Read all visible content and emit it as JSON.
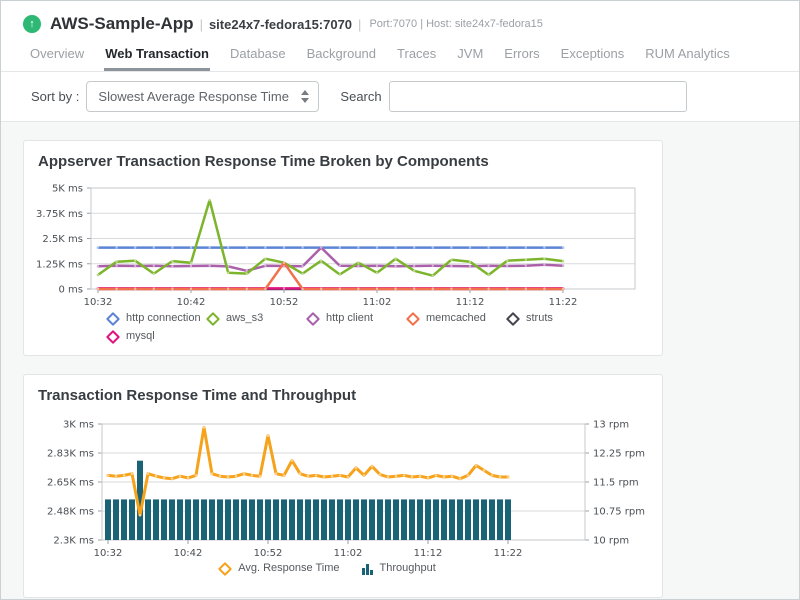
{
  "header": {
    "status_glyph": "↑",
    "app_name": "AWS-Sample-App",
    "sep": "|",
    "instance": "site24x7-fedora15:7070",
    "meta": "Port:7070 | Host: site24x7-fedora15"
  },
  "tabs": [
    {
      "label": "Overview",
      "active": false
    },
    {
      "label": "Web Transaction",
      "active": true
    },
    {
      "label": "Database",
      "active": false
    },
    {
      "label": "Background",
      "active": false
    },
    {
      "label": "Traces",
      "active": false
    },
    {
      "label": "JVM",
      "active": false
    },
    {
      "label": "Errors",
      "active": false
    },
    {
      "label": "Exceptions",
      "active": false
    },
    {
      "label": "RUM Analytics",
      "active": false
    }
  ],
  "toolbar": {
    "sort_label": "Sort by :",
    "sort_value": "Slowest Average Response Time",
    "search_label": "Search",
    "search_value": ""
  },
  "colors": {
    "status_up_green": "#2db873",
    "active_tab_underline": "#8e949b",
    "card_border": "#e2e4e5",
    "content_background": "#f6f7f7"
  },
  "chart_data": [
    {
      "type": "line",
      "title": "Appserver Transaction Response Time Broken by Components",
      "y_unit": "ms",
      "ylim": [
        0,
        5000
      ],
      "y_tick_labels": [
        "5K ms",
        "3.75K ms",
        "2.5K ms",
        "1.25K ms",
        "0 ms"
      ],
      "x_ticks": [
        "10:32",
        "10:42",
        "10:52",
        "11:02",
        "11:12",
        "11:22"
      ],
      "grid": true,
      "legend_position": "bottom",
      "x": [
        "10:32",
        "10:34",
        "10:36",
        "10:38",
        "10:40",
        "10:42",
        "10:44",
        "10:46",
        "10:48",
        "10:50",
        "10:52",
        "10:54",
        "10:56",
        "10:58",
        "11:00",
        "11:02",
        "11:04",
        "11:06",
        "11:08",
        "11:10",
        "11:12",
        "11:14",
        "11:16",
        "11:18",
        "11:20",
        "11:22"
      ],
      "series": [
        {
          "name": "http connection",
          "color": "#5b84d6",
          "values": [
            2050,
            2050,
            2050,
            2050,
            2050,
            2050,
            2050,
            2050,
            2050,
            2050,
            2050,
            2050,
            2050,
            2050,
            2050,
            2050,
            2050,
            2050,
            2050,
            2050,
            2050,
            2050,
            2050,
            2050,
            2050,
            2050
          ]
        },
        {
          "name": "aws_s3",
          "color": "#7cb52b",
          "values": [
            700,
            1350,
            1400,
            760,
            1380,
            1300,
            4400,
            800,
            760,
            1500,
            1300,
            760,
            1400,
            720,
            1300,
            800,
            1500,
            900,
            660,
            1450,
            1350,
            700,
            1400,
            1450,
            1500,
            1380
          ]
        },
        {
          "name": "http client",
          "color": "#aa60ab",
          "values": [
            1130,
            1150,
            1140,
            1150,
            1130,
            1140,
            1150,
            1120,
            900,
            1150,
            1140,
            1130,
            2050,
            1150,
            1140,
            1150,
            1130,
            1140,
            1150,
            1140,
            1130,
            1150,
            1140,
            1150,
            1200,
            1150
          ]
        },
        {
          "name": "memcached",
          "color": "#f2714b",
          "values": [
            0,
            0,
            0,
            0,
            0,
            0,
            0,
            0,
            0,
            0,
            1300,
            0,
            0,
            0,
            0,
            0,
            0,
            0,
            0,
            0,
            0,
            0,
            0,
            0,
            0,
            0
          ]
        },
        {
          "name": "struts",
          "color": "#47444f",
          "values": [
            0,
            0,
            0,
            0,
            0,
            0,
            0,
            0,
            0,
            0,
            0,
            0,
            0,
            0,
            0,
            0,
            0,
            0,
            0,
            0,
            0,
            0,
            0,
            0,
            0,
            0
          ]
        },
        {
          "name": "mysql",
          "color": "#e01280",
          "values": [
            30,
            30,
            30,
            30,
            30,
            30,
            30,
            30,
            30,
            30,
            30,
            30,
            30,
            30,
            30,
            30,
            30,
            30,
            30,
            30,
            30,
            30,
            30,
            30,
            30,
            30
          ]
        }
      ]
    },
    {
      "type": "line+bar",
      "title": "Transaction Response Time and Throughput",
      "x_ticks": [
        "10:32",
        "10:42",
        "10:52",
        "11:02",
        "11:12",
        "11:22"
      ],
      "y_left": {
        "unit": "ms",
        "lim": [
          2300,
          3000
        ],
        "tick_labels": [
          "3K ms",
          "2.83K ms",
          "2.65K ms",
          "2.48K ms",
          "2.3K ms"
        ]
      },
      "y_right": {
        "unit": "rpm",
        "lim": [
          10,
          13
        ],
        "tick_labels": [
          "13 rpm",
          "12.25 rpm",
          "11.5 rpm",
          "10.75 rpm",
          "10 rpm"
        ]
      },
      "grid": true,
      "legend_position": "bottom",
      "x": [
        "10:32",
        "10:33",
        "10:34",
        "10:35",
        "10:36",
        "10:37",
        "10:38",
        "10:39",
        "10:40",
        "10:41",
        "10:42",
        "10:43",
        "10:44",
        "10:45",
        "10:46",
        "10:47",
        "10:48",
        "10:49",
        "10:50",
        "10:51",
        "10:52",
        "10:53",
        "10:54",
        "10:55",
        "10:56",
        "10:57",
        "10:58",
        "10:59",
        "11:00",
        "11:01",
        "11:02",
        "11:03",
        "11:04",
        "11:05",
        "11:06",
        "11:07",
        "11:08",
        "11:09",
        "11:10",
        "11:11",
        "11:12",
        "11:13",
        "11:14",
        "11:15",
        "11:16",
        "11:17",
        "11:18",
        "11:19",
        "11:20",
        "11:21",
        "11:22"
      ],
      "series": [
        {
          "name": "Avg. Response Time",
          "type": "line",
          "axis": "left",
          "color": "#f7a21b",
          "values": [
            2690,
            2685,
            2690,
            2700,
            2450,
            2700,
            2685,
            2675,
            2670,
            2685,
            2675,
            2690,
            2980,
            2700,
            2685,
            2680,
            2685,
            2700,
            2690,
            2685,
            2930,
            2700,
            2690,
            2780,
            2700,
            2685,
            2690,
            2680,
            2685,
            2690,
            2680,
            2735,
            2690,
            2745,
            2695,
            2680,
            2685,
            2690,
            2680,
            2685,
            2675,
            2690,
            2680,
            2685,
            2670,
            2690,
            2750,
            2720,
            2690,
            2680,
            2680
          ]
        },
        {
          "name": "Throughput",
          "type": "bar",
          "axis": "right",
          "color": "#1a6376",
          "values": [
            11.05,
            11.05,
            11.05,
            11.05,
            12.05,
            11.05,
            11.05,
            11.05,
            11.05,
            11.05,
            11.05,
            11.05,
            11.05,
            11.05,
            11.05,
            11.05,
            11.05,
            11.05,
            11.05,
            11.05,
            11.05,
            11.05,
            11.05,
            11.05,
            11.05,
            11.05,
            11.05,
            11.05,
            11.05,
            11.05,
            11.05,
            11.05,
            11.05,
            11.05,
            11.05,
            11.05,
            11.05,
            11.05,
            11.05,
            11.05,
            11.05,
            11.05,
            11.05,
            11.05,
            11.05,
            11.05,
            11.05,
            11.05,
            11.05,
            11.05,
            11.05
          ]
        }
      ]
    }
  ]
}
